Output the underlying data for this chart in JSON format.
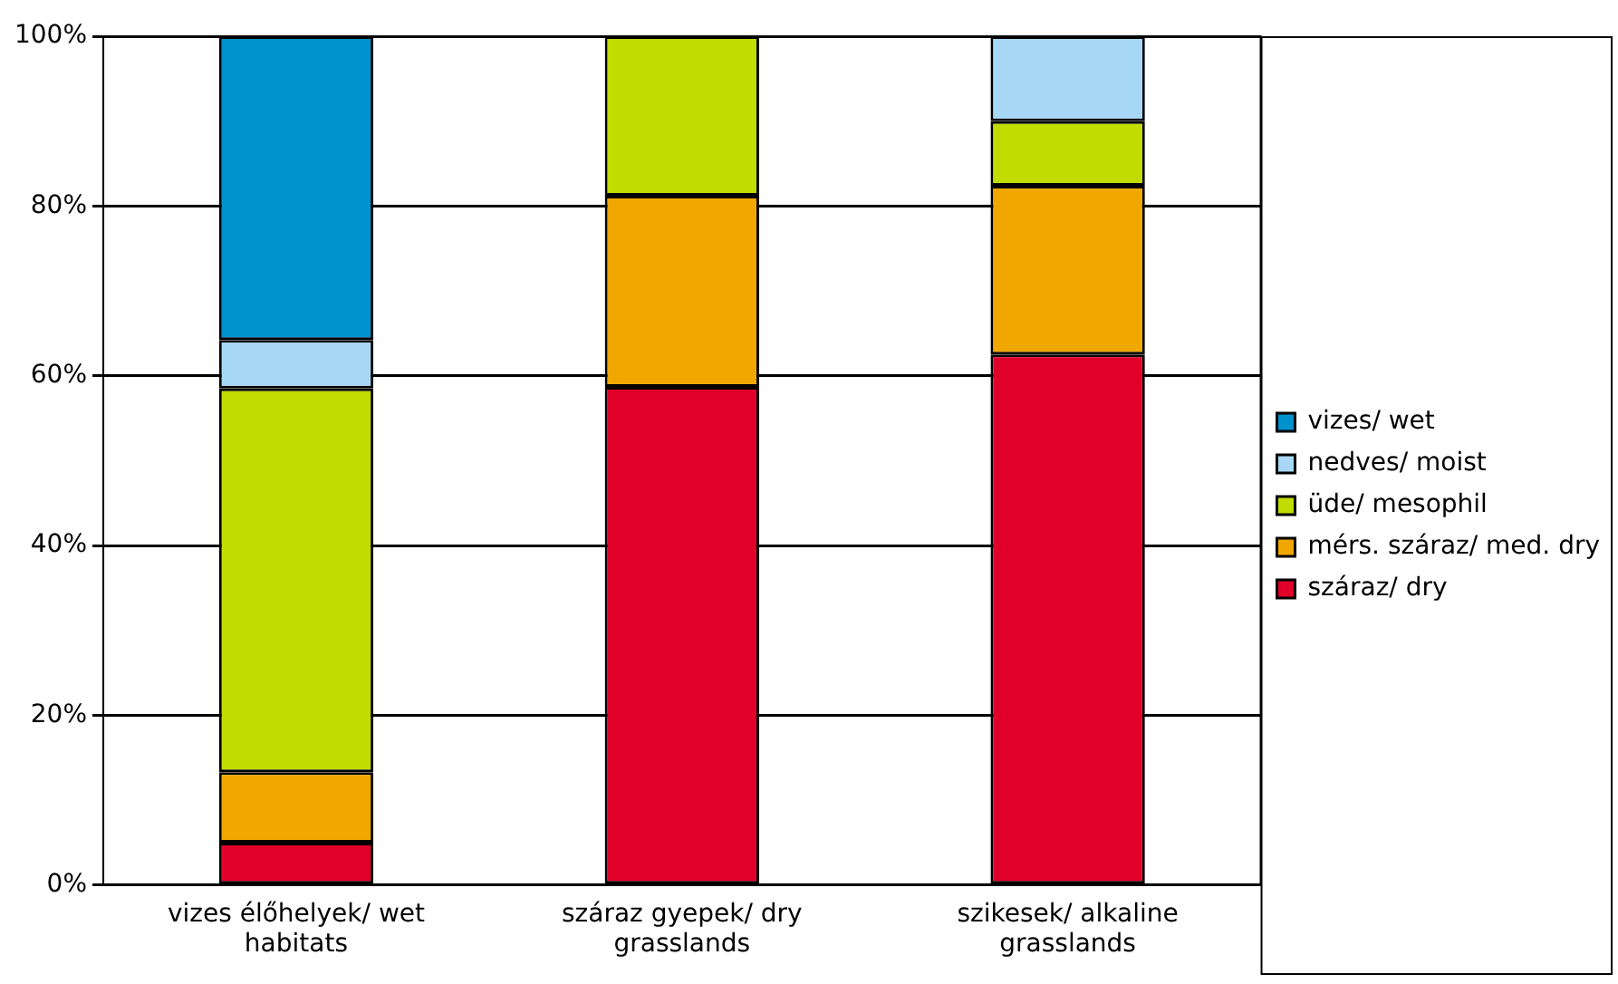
{
  "chart_data": {
    "type": "bar",
    "stacked": true,
    "categories": [
      "vizes élőhelyek/ wet habitats",
      "száraz gyepek/ dry grasslands",
      "szikesek/ alkaline grasslands"
    ],
    "series": [
      {
        "name": "száraz/ dry",
        "color": "#e00028",
        "values": [
          5,
          58.7,
          62.5
        ]
      },
      {
        "name": "mérs. száraz/ med. dry",
        "color": "#f0a800",
        "values": [
          8.3,
          22.5,
          19.9
        ]
      },
      {
        "name": "üde/ mesophil",
        "color": "#c0dc00",
        "values": [
          45.2,
          18.8,
          7.6
        ]
      },
      {
        "name": "nedves/ moist",
        "color": "#a6d8f5",
        "values": [
          5.7,
          null,
          10
        ]
      },
      {
        "name": "vizes/ wet",
        "color": "#0091cf",
        "values": [
          35.8,
          null,
          null
        ]
      }
    ],
    "ylim": [
      0,
      100
    ],
    "yticks": [
      {
        "value": 0,
        "label": "0%"
      },
      {
        "value": 20,
        "label": "20%"
      },
      {
        "value": 40,
        "label": "40%"
      },
      {
        "value": 60,
        "label": "60%"
      },
      {
        "value": 80,
        "label": "80%"
      },
      {
        "value": 100,
        "label": "100%"
      }
    ],
    "grid": "y",
    "legend": "right"
  }
}
